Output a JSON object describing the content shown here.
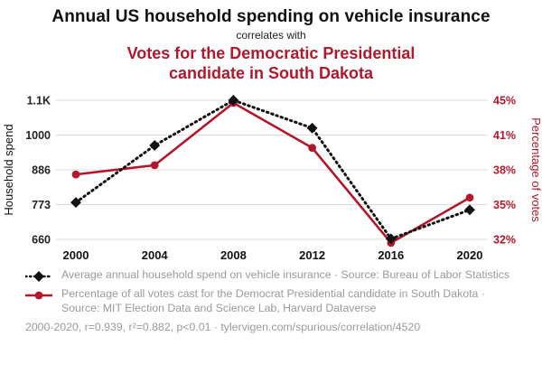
{
  "title": "Annual US household spending on vehicle insurance",
  "connector": "correlates with",
  "subtitle": "Votes for the Democratic Presidential candidate in South Dakota",
  "colors": {
    "accent_red": "#b2182b",
    "series_black": "#111111",
    "grid": "#dddddd",
    "muted_text": "#9a9a9a"
  },
  "chart_data": {
    "type": "line",
    "x": [
      2000,
      2004,
      2008,
      2012,
      2016,
      2020
    ],
    "x_ticks": [
      "2000",
      "2004",
      "2008",
      "2012",
      "2016",
      "2020"
    ],
    "series": [
      {
        "name": "Average annual household spend on vehicle insurance",
        "axis": "left",
        "color": "#111111",
        "style": "dotted-diamond",
        "values": [
          780,
          966,
          1100,
          1020,
          662,
          756
        ]
      },
      {
        "name": "Percentage of all votes cast for the Democrat Presidential candidate in South Dakota",
        "axis": "right",
        "color": "#b2182b",
        "style": "solid-circle",
        "values": [
          37.6,
          38.4,
          44.7,
          39.9,
          31.7,
          35.6
        ]
      }
    ],
    "left_axis": {
      "label": "Household spend",
      "ticks": [
        "1.1K",
        "1000",
        "886",
        "773",
        "660"
      ],
      "tick_values": [
        1100,
        1000,
        886,
        773,
        660
      ]
    },
    "right_axis": {
      "label": "Percentage of votes",
      "ticks": [
        "45%",
        "41%",
        "38%",
        "35%",
        "32%"
      ],
      "tick_values": [
        45,
        41,
        38,
        35,
        32
      ]
    },
    "grid": "horizontal",
    "legend_position": "below"
  },
  "legend": [
    {
      "label": "Average annual household spend on vehicle insurance · Source: Bureau of Labor Statistics",
      "marker": "black-diamond-dotted"
    },
    {
      "label": "Percentage of all votes cast for the Democrat Presidential candidate in South Dakota · Source: MIT Election Data and Science Lab, Harvard Dataverse",
      "marker": "red-circle-line"
    }
  ],
  "footer": "2000-2020, r=0.939, r²=0.882, p<0.01 · tylervigen.com/spurious/correlation/4520"
}
